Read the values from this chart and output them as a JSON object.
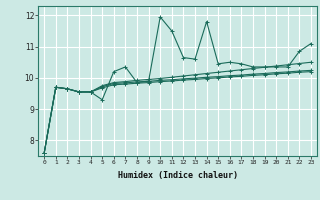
{
  "xlabel": "Humidex (Indice chaleur)",
  "xlim": [
    -0.5,
    23.5
  ],
  "ylim": [
    7.5,
    12.3
  ],
  "yticks": [
    8,
    9,
    10,
    11,
    12
  ],
  "xticks": [
    0,
    1,
    2,
    3,
    4,
    5,
    6,
    7,
    8,
    9,
    10,
    11,
    12,
    13,
    14,
    15,
    16,
    17,
    18,
    19,
    20,
    21,
    22,
    23
  ],
  "background_color": "#cce9e4",
  "line_color": "#1a6b5a",
  "grid_color": "#ffffff",
  "series": [
    [
      7.6,
      9.7,
      9.65,
      9.55,
      9.55,
      9.3,
      10.2,
      10.35,
      9.85,
      9.9,
      11.95,
      11.5,
      10.65,
      10.6,
      11.8,
      10.45,
      10.5,
      10.45,
      10.35,
      10.35,
      10.35,
      10.35,
      10.85,
      11.1
    ],
    [
      7.6,
      9.7,
      9.65,
      9.55,
      9.55,
      9.75,
      9.85,
      9.88,
      9.92,
      9.95,
      9.98,
      10.02,
      10.06,
      10.1,
      10.14,
      10.18,
      10.22,
      10.26,
      10.3,
      10.34,
      10.38,
      10.42,
      10.46,
      10.5
    ],
    [
      7.6,
      9.7,
      9.65,
      9.55,
      9.55,
      9.72,
      9.82,
      9.84,
      9.87,
      9.89,
      9.92,
      9.94,
      9.97,
      9.99,
      10.02,
      10.04,
      10.07,
      10.09,
      10.12,
      10.14,
      10.17,
      10.19,
      10.22,
      10.24
    ],
    [
      7.6,
      9.7,
      9.65,
      9.55,
      9.55,
      9.68,
      9.78,
      9.8,
      9.83,
      9.85,
      9.88,
      9.9,
      9.93,
      9.95,
      9.98,
      10.0,
      10.03,
      10.05,
      10.08,
      10.1,
      10.13,
      10.15,
      10.18,
      10.2
    ]
  ]
}
